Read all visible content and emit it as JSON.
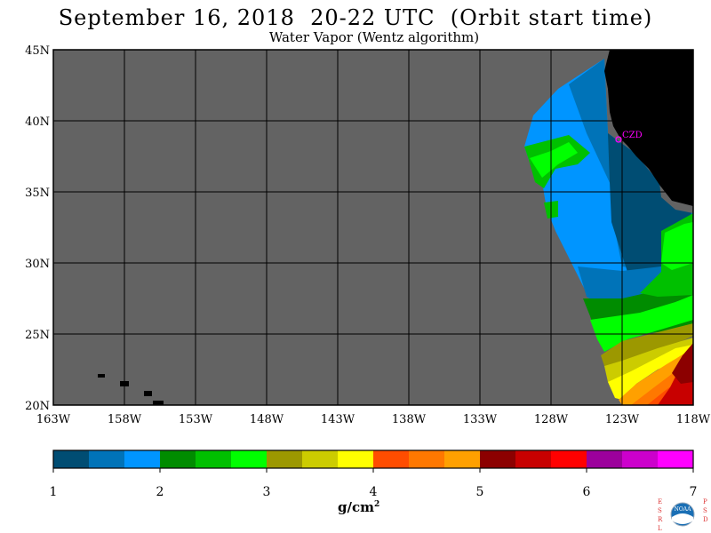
{
  "header": {
    "title": "September 16, 2018  20-22 UTC  (Orbit start time)",
    "subtitle": "Water Vapor (Wentz algorithm)"
  },
  "map": {
    "lat_labels": [
      "45N",
      "40N",
      "35N",
      "30N",
      "25N",
      "20N"
    ],
    "lon_labels": [
      "163W",
      "158W",
      "153W",
      "148W",
      "143W",
      "138W",
      "133W",
      "128W",
      "123W",
      "118W"
    ],
    "station_label": "CZD",
    "colors": {
      "no_data": "#636363",
      "land": "#000000",
      "grid": "#000000",
      "station": "#ff00ff"
    }
  },
  "colorbar": {
    "ticks": [
      "1",
      "2",
      "3",
      "4",
      "5",
      "6",
      "7"
    ],
    "unit_base": "g/cm",
    "unit_exp": "2",
    "colors": [
      "#004d73",
      "#0073b8",
      "#0095ff",
      "#008c00",
      "#00c000",
      "#00ff00",
      "#9c9800",
      "#cccc00",
      "#ffff00",
      "#ff4d00",
      "#ff7800",
      "#ffa000",
      "#8c0000",
      "#c80000",
      "#ff0000",
      "#9c009c",
      "#cc00cc",
      "#ff00ff"
    ]
  },
  "logo": {
    "left_letters": "ESRL",
    "right_letters": "PSD",
    "center": "NOAA"
  }
}
